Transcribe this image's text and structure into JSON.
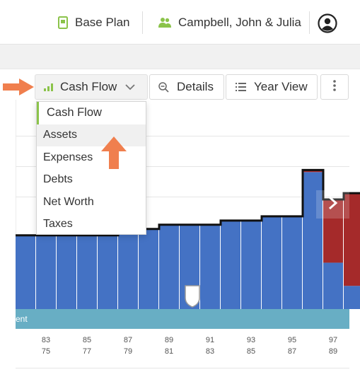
{
  "header": {
    "plan_label": "Base Plan",
    "client_label": "Campbell, John & Julia",
    "plan_icon": "document-icon",
    "client_icon": "people-icon",
    "profile_icon": "user-circle-icon"
  },
  "toolbar": {
    "cashflow_label": "Cash Flow",
    "details_label": "Details",
    "yearview_label": "Year View",
    "more_icon": "kebab-icon"
  },
  "dropdown": {
    "items": [
      "Cash Flow",
      "Assets",
      "Expenses",
      "Debts",
      "Net Worth",
      "Taxes"
    ],
    "selected": "Cash Flow",
    "hovered": "Assets"
  },
  "band_label": "ent",
  "axis": {
    "years": [
      "83",
      "85",
      "87",
      "89",
      "91",
      "93",
      "95",
      "97"
    ],
    "ages": [
      "75",
      "77",
      "79",
      "81",
      "83",
      "85",
      "87",
      "89"
    ]
  },
  "colors": {
    "income": "#4472c4",
    "shortfall": "#a52a2a",
    "accent": "#8bc34a",
    "band": "#68aec4",
    "arrow": "#f07f4e"
  },
  "chart_data": {
    "type": "bar",
    "values": [
      0.35,
      0.35,
      0.35,
      0.35,
      0.35,
      0.38,
      0.38,
      0.4,
      0.4,
      0.4,
      0.42,
      0.42,
      0.44,
      0.44,
      0.66,
      0.52,
      0.55
    ],
    "shortfall": [
      0,
      0,
      0,
      0,
      0,
      0,
      0,
      0,
      0,
      0,
      0,
      0,
      0,
      0,
      0.01,
      0.3,
      0.44
    ]
  }
}
